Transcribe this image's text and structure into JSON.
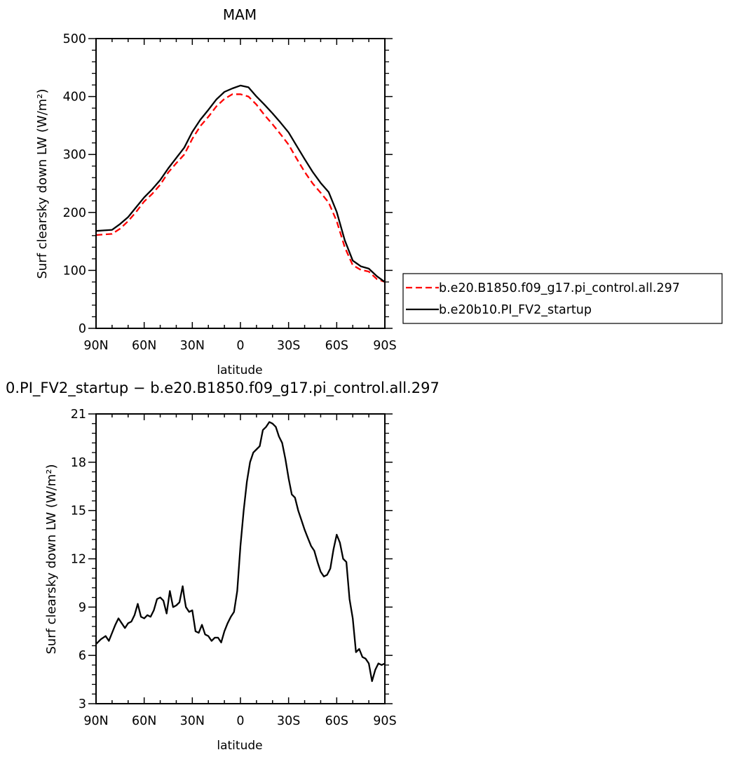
{
  "chart_data": [
    {
      "type": "line",
      "title": "MAM",
      "xlabel": "latitude",
      "ylabel": "Surf clearsky down LW (W/m²)",
      "xlim": [
        90,
        -90
      ],
      "ylim": [
        0,
        500
      ],
      "yticks": [
        0,
        100,
        200,
        300,
        400,
        500
      ],
      "xticks": [
        90,
        60,
        30,
        0,
        -30,
        -60,
        -90
      ],
      "xticklabels": [
        "90N",
        "60N",
        "30N",
        "0",
        "30S",
        "60S",
        "90S"
      ],
      "grid": false,
      "legend": "right, outside plot",
      "series": [
        {
          "name": "b.e20.B1850.f09_g17.pi_control.all.297",
          "color": "#ff0000",
          "dash": "dashed",
          "x": [
            90,
            85,
            80,
            75,
            70,
            65,
            60,
            55,
            50,
            45,
            40,
            35,
            30,
            25,
            20,
            15,
            10,
            5,
            0,
            -5,
            -10,
            -15,
            -20,
            -25,
            -30,
            -35,
            -40,
            -45,
            -50,
            -55,
            -60,
            -65,
            -70,
            -75,
            -80,
            -85,
            -90
          ],
          "values": [
            161,
            162,
            163,
            172,
            185,
            201,
            219,
            232,
            248,
            269,
            285,
            300,
            327,
            349,
            365,
            383,
            396,
            404,
            404,
            400,
            386,
            368,
            352,
            335,
            317,
            293,
            270,
            250,
            234,
            217,
            185,
            140,
            109,
            101,
            98,
            85,
            80
          ]
        },
        {
          "name": "b.e20b10.PI_FV2_startup",
          "color": "#000000",
          "dash": "solid",
          "x": [
            90,
            85,
            80,
            75,
            70,
            65,
            60,
            55,
            50,
            45,
            40,
            35,
            30,
            25,
            20,
            15,
            10,
            5,
            0,
            -5,
            -10,
            -15,
            -20,
            -25,
            -30,
            -35,
            -40,
            -45,
            -50,
            -55,
            -60,
            -65,
            -70,
            -75,
            -80,
            -85,
            -90
          ],
          "values": [
            168,
            169,
            170,
            180,
            192,
            209,
            226,
            240,
            256,
            276,
            294,
            312,
            339,
            360,
            377,
            395,
            408,
            414,
            419,
            416,
            400,
            386,
            371,
            355,
            338,
            315,
            292,
            270,
            251,
            235,
            201,
            152,
            117,
            107,
            103,
            90,
            80
          ]
        }
      ]
    },
    {
      "type": "line",
      "title": "0.PI_FV2_startup − b.e20.B1850.f09_g17.pi_control.all.297",
      "xlabel": "latitude",
      "ylabel": "Surf clearsky down LW (W/m²)",
      "xlim": [
        90,
        -90
      ],
      "ylim": [
        3,
        21
      ],
      "yticks": [
        3,
        6,
        9,
        12,
        15,
        18,
        21
      ],
      "xticks": [
        90,
        60,
        30,
        0,
        -30,
        -60,
        -90
      ],
      "xticklabels": [
        "90N",
        "60N",
        "30N",
        "0",
        "30S",
        "60S",
        "90S"
      ],
      "grid": false,
      "series": [
        {
          "color": "#000000",
          "dash": "solid",
          "x": [
            90,
            87,
            84,
            82,
            80,
            78,
            76,
            74,
            72,
            70,
            68,
            66,
            64,
            62,
            60,
            58,
            56,
            54,
            52,
            50,
            48,
            46,
            44,
            43,
            42,
            40,
            38,
            36,
            35,
            34,
            32,
            30,
            28,
            26,
            24,
            22,
            20,
            18,
            16,
            14,
            12,
            10,
            8,
            6,
            4,
            2,
            0,
            -2,
            -4,
            -6,
            -8,
            -10,
            -12,
            -14,
            -16,
            -18,
            -20,
            -22,
            -24,
            -26,
            -28,
            -30,
            -32,
            -34,
            -36,
            -38,
            -40,
            -42,
            -44,
            -46,
            -48,
            -50,
            -52,
            -54,
            -56,
            -58,
            -60,
            -62,
            -64,
            -66,
            -68,
            -70,
            -72,
            -74,
            -76,
            -78,
            -80,
            -82,
            -84,
            -86,
            -88,
            -90
          ],
          "values": [
            6.7,
            7.0,
            7.2,
            6.9,
            7.4,
            7.9,
            8.3,
            8.0,
            7.7,
            8.0,
            8.1,
            8.5,
            9.2,
            8.4,
            8.3,
            8.5,
            8.4,
            8.8,
            9.5,
            9.6,
            9.4,
            8.6,
            10.0,
            9.5,
            9.0,
            9.1,
            9.3,
            10.3,
            9.6,
            9.0,
            8.7,
            8.8,
            7.5,
            7.4,
            7.9,
            7.3,
            7.2,
            6.9,
            7.1,
            7.1,
            6.8,
            7.5,
            8.0,
            8.4,
            8.7,
            10.0,
            12.8,
            15.0,
            16.8,
            18.0,
            18.6,
            18.8,
            19.0,
            20.0,
            20.2,
            20.5,
            20.4,
            20.2,
            19.6,
            19.2,
            18.2,
            17.0,
            16.0,
            15.8,
            15.0,
            14.4,
            13.8,
            13.3,
            12.8,
            12.5,
            11.8,
            11.2,
            10.9,
            11.0,
            11.4,
            12.6,
            13.5,
            13.0,
            12.0,
            11.8,
            9.5,
            8.3,
            6.2,
            6.4,
            5.9,
            5.8,
            5.5,
            4.4,
            5.1,
            5.5,
            5.4,
            5.5
          ]
        }
      ]
    }
  ]
}
